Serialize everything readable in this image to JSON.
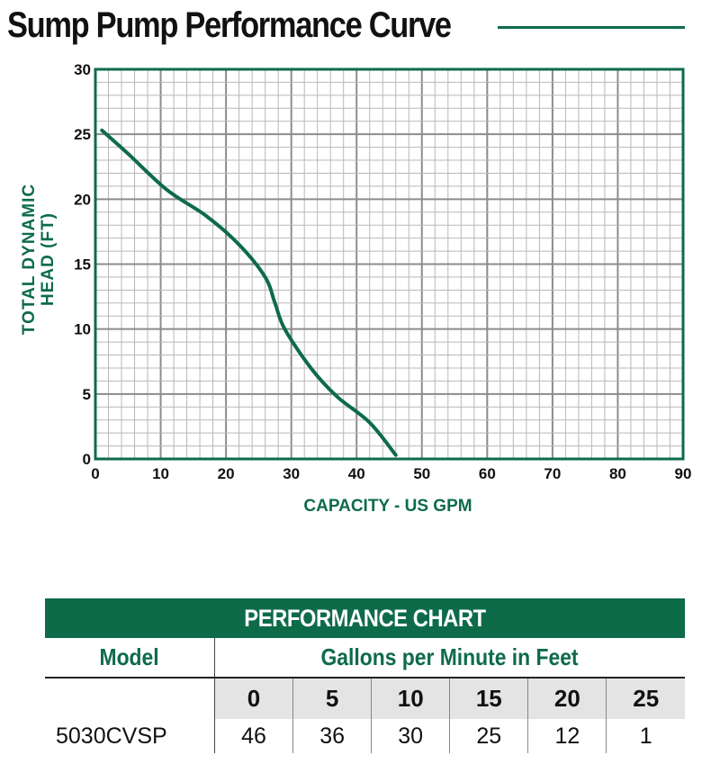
{
  "title": "Sump Pump Performance Curve",
  "colors": {
    "accent": "#0e6b4a",
    "grid": "#9a9a9a",
    "curve": "#0e6b4a"
  },
  "chart_data": {
    "type": "line",
    "xlabel": "CAPACITY - US GPM",
    "ylabel_line1": "TOTAL DYNAMIC",
    "ylabel_line2": "HEAD (FT)",
    "xlim": [
      0,
      90
    ],
    "ylim": [
      0,
      30
    ],
    "x_ticks": [
      "0",
      "10",
      "20",
      "30",
      "40",
      "50",
      "60",
      "70",
      "80",
      "90"
    ],
    "y_ticks": [
      "0",
      "5",
      "10",
      "15",
      "20",
      "25",
      "30"
    ],
    "grid": true,
    "series": [
      {
        "x": [
          1,
          5,
          11,
          17,
          22,
          26,
          27.5,
          29,
          33,
          37,
          42,
          46
        ],
        "y": [
          25.3,
          23.5,
          20.7,
          18.7,
          16.5,
          14.0,
          12.0,
          10.0,
          7.0,
          4.8,
          2.8,
          0.3
        ]
      }
    ]
  },
  "table": {
    "heading": "PERFORMANCE CHART",
    "model_header": "Model",
    "gpm_header": "Gallons per Minute in Feet",
    "head_values": [
      "0",
      "5",
      "10",
      "15",
      "20",
      "25"
    ],
    "rows": [
      {
        "model": "5030CVSP",
        "values": [
          "46",
          "36",
          "30",
          "25",
          "12",
          "1"
        ]
      }
    ]
  }
}
